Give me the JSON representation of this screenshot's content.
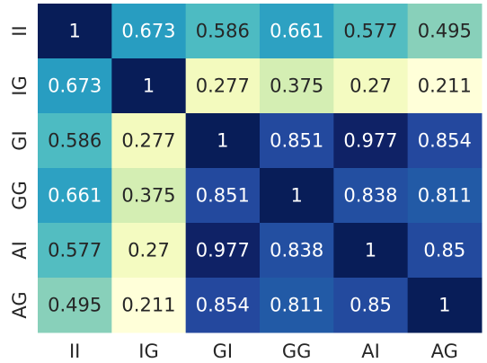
{
  "chart_data": {
    "type": "heatmap",
    "title": "",
    "xlabel": "",
    "ylabel": "",
    "x_labels": [
      "II",
      "IG",
      "GI",
      "GG",
      "AI",
      "AG"
    ],
    "y_labels": [
      "II",
      "IG",
      "GI",
      "GG",
      "AI",
      "AG"
    ],
    "values": [
      [
        1,
        0.673,
        0.586,
        0.661,
        0.577,
        0.495
      ],
      [
        0.673,
        1,
        0.277,
        0.375,
        0.27,
        0.211
      ],
      [
        0.586,
        0.277,
        1,
        0.851,
        0.977,
        0.854
      ],
      [
        0.661,
        0.375,
        0.851,
        1,
        0.838,
        0.811
      ],
      [
        0.577,
        0.27,
        0.977,
        0.838,
        1,
        0.85
      ],
      [
        0.495,
        0.211,
        0.854,
        0.811,
        0.85,
        1
      ]
    ],
    "value_labels": [
      [
        "1",
        "0.673",
        "0.586",
        "0.661",
        "0.577",
        "0.495"
      ],
      [
        "0.673",
        "1",
        "0.277",
        "0.375",
        "0.27",
        "0.211"
      ],
      [
        "0.586",
        "0.277",
        "1",
        "0.851",
        "0.977",
        "0.854"
      ],
      [
        "0.661",
        "0.375",
        "0.851",
        "1",
        "0.838",
        "0.811"
      ],
      [
        "0.577",
        "0.27",
        "0.977",
        "0.838",
        "1",
        "0.85"
      ],
      [
        "0.495",
        "0.211",
        "0.854",
        "0.811",
        "0.85",
        "1"
      ]
    ],
    "colormap": "YlGnBu",
    "vmin": 0.211,
    "vmax": 1,
    "colorbar": false,
    "grid": false
  }
}
